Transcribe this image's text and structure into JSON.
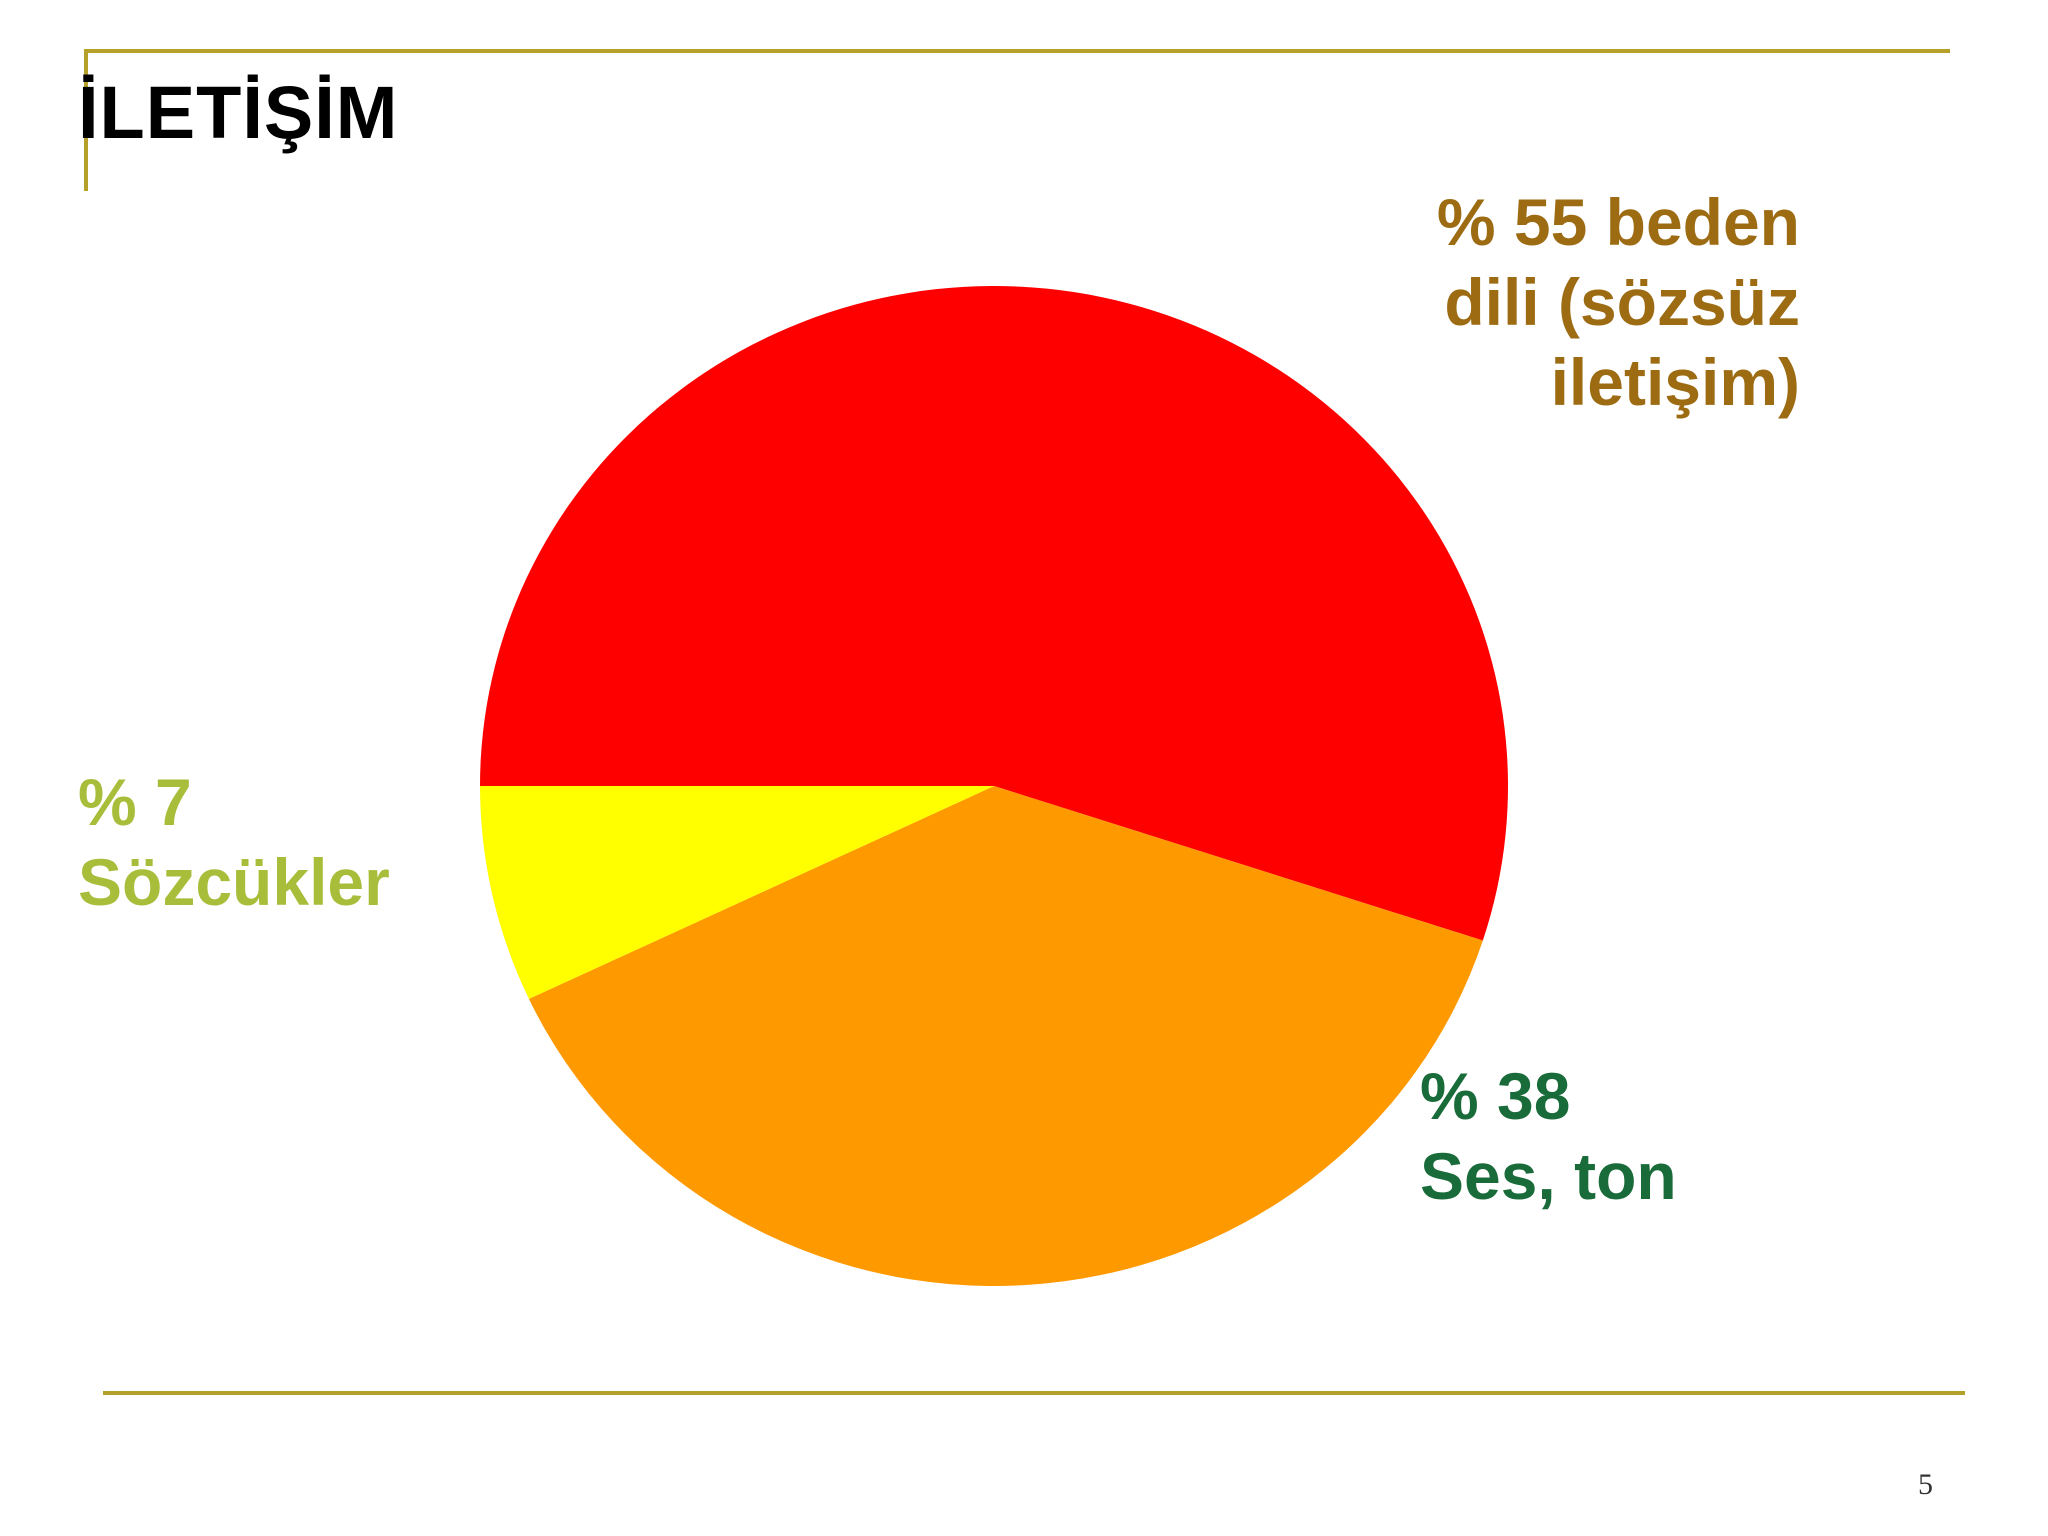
{
  "slide": {
    "title": "İLETİŞİM",
    "page_number": "5"
  },
  "colors": {
    "accent_rule": "#b5a02a",
    "nonverbal": "#ff0000",
    "voice": "#ff9900",
    "words": "#ffff00",
    "label_nonverbal": "#9c6b12",
    "label_words": "#a8bd3a",
    "label_voice": "#1a6b3a"
  },
  "chart_data": {
    "type": "pie",
    "title": "",
    "slices": [
      {
        "label": "% 55 beden\ndili (sözsüz\niletişim)",
        "value": 55,
        "color": "#ff0000"
      },
      {
        "label": "% 38\nSes, ton",
        "value": 38,
        "color": "#ff9900"
      },
      {
        "label": "% 7\nSözcükler",
        "value": 7,
        "color": "#ffff00"
      }
    ]
  }
}
